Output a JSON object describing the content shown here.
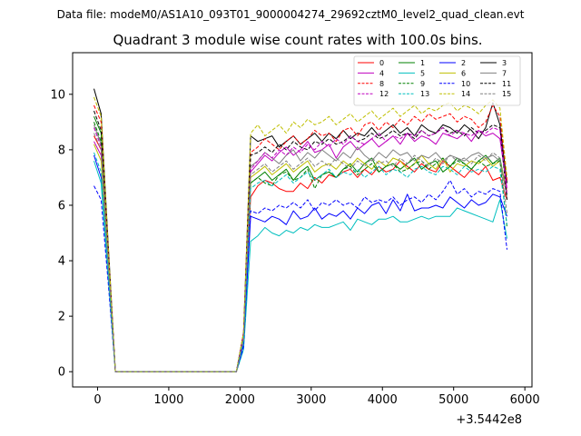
{
  "chart_data": {
    "type": "line",
    "suptitle": "Data file: modeM0/AS1A10_093T01_9000004274_29692cztM0_level2_quad_clean.evt",
    "title": "Quadrant 3 module wise count rates with 100.0s bins.",
    "xlabel": "",
    "ylabel": "",
    "x_offset_label": "+3.5442e8",
    "xlim": [
      -350,
      6100
    ],
    "ylim": [
      -0.55,
      11.5
    ],
    "xticks": [
      0,
      1000,
      2000,
      3000,
      4000,
      5000,
      6000
    ],
    "xtick_labels": [
      "0",
      "1000",
      "2000",
      "3000",
      "4000",
      "5000",
      "6000"
    ],
    "yticks": [
      0,
      2,
      4,
      6,
      8,
      10
    ],
    "ytick_labels": [
      "0",
      "2",
      "4",
      "6",
      "8",
      "10"
    ],
    "grid": false,
    "legend_position": "top-right",
    "x": [
      -50,
      50,
      150,
      250,
      350,
      450,
      550,
      650,
      750,
      850,
      950,
      1050,
      1150,
      1250,
      1350,
      1450,
      1550,
      1650,
      1750,
      1850,
      1950,
      2050,
      2150,
      2250,
      2350,
      2450,
      2550,
      2650,
      2750,
      2850,
      2950,
      3050,
      3150,
      3250,
      3350,
      3450,
      3550,
      3650,
      3750,
      3850,
      3950,
      4050,
      4150,
      4250,
      4350,
      4450,
      4550,
      4650,
      4750,
      4850,
      4950,
      5050,
      5150,
      5250,
      5350,
      5450,
      5550,
      5650,
      5750
    ],
    "series": [
      {
        "name": "0",
        "color": "#ff0000",
        "dash": "solid",
        "values": [
          8.5,
          8.0,
          4.0,
          0,
          0,
          0,
          0,
          0,
          0,
          0,
          0,
          0,
          0,
          0,
          0,
          0,
          0,
          0,
          0,
          0,
          0,
          1.2,
          6.3,
          6.7,
          6.9,
          6.8,
          6.6,
          6.5,
          6.5,
          6.8,
          6.6,
          7.0,
          6.8,
          7.1,
          7.0,
          7.2,
          7.3,
          7.0,
          7.3,
          7.1,
          7.4,
          7.2,
          7.3,
          7.6,
          7.4,
          7.2,
          7.5,
          7.3,
          7.2,
          7.6,
          7.4,
          7.2,
          7.0,
          7.3,
          7.1,
          7.4,
          6.9,
          7.0,
          6.2
        ]
      },
      {
        "name": "1",
        "color": "#008000",
        "dash": "solid",
        "values": [
          9.2,
          8.6,
          4.2,
          0,
          0,
          0,
          0,
          0,
          0,
          0,
          0,
          0,
          0,
          0,
          0,
          0,
          0,
          0,
          0,
          0,
          0,
          1.3,
          6.8,
          7.0,
          7.2,
          6.9,
          7.1,
          7.3,
          6.9,
          7.2,
          7.4,
          6.9,
          7.1,
          7.2,
          7.0,
          7.3,
          7.5,
          7.2,
          7.5,
          7.7,
          7.2,
          7.4,
          7.5,
          7.3,
          7.5,
          7.7,
          7.3,
          7.5,
          7.6,
          7.2,
          7.4,
          7.7,
          7.5,
          7.3,
          7.6,
          7.8,
          7.5,
          7.7,
          6.4
        ]
      },
      {
        "name": "2",
        "color": "#0000ff",
        "dash": "solid",
        "values": [
          7.8,
          7.0,
          3.6,
          0,
          0,
          0,
          0,
          0,
          0,
          0,
          0,
          0,
          0,
          0,
          0,
          0,
          0,
          0,
          0,
          0,
          0,
          1.0,
          5.6,
          5.5,
          5.4,
          5.6,
          5.5,
          5.3,
          5.8,
          5.5,
          5.6,
          5.9,
          5.5,
          5.7,
          5.6,
          5.8,
          5.5,
          5.9,
          5.7,
          6.0,
          6.1,
          5.7,
          6.2,
          5.8,
          6.4,
          5.8,
          5.9,
          5.9,
          6.0,
          5.9,
          6.3,
          6.1,
          5.9,
          6.2,
          6.0,
          6.1,
          6.4,
          6.3,
          5.6
        ]
      },
      {
        "name": "3",
        "color": "#000000",
        "dash": "solid",
        "values": [
          10.2,
          9.3,
          4.6,
          0,
          0,
          0,
          0,
          0,
          0,
          0,
          0,
          0,
          0,
          0,
          0,
          0,
          0,
          0,
          0,
          0,
          0,
          1.4,
          8.5,
          8.3,
          8.4,
          8.5,
          8.1,
          8.3,
          8.5,
          8.2,
          8.4,
          8.6,
          8.3,
          8.6,
          8.4,
          8.7,
          8.4,
          8.6,
          8.5,
          8.8,
          8.5,
          8.7,
          8.9,
          8.6,
          8.8,
          8.5,
          8.9,
          8.7,
          8.6,
          8.9,
          8.8,
          8.6,
          8.9,
          8.7,
          8.4,
          8.8,
          9.7,
          8.9,
          6.8
        ]
      },
      {
        "name": "4",
        "color": "#bf00bf",
        "dash": "solid",
        "values": [
          8.3,
          7.8,
          3.9,
          0,
          0,
          0,
          0,
          0,
          0,
          0,
          0,
          0,
          0,
          0,
          0,
          0,
          0,
          0,
          0,
          0,
          0,
          1.2,
          7.2,
          7.5,
          7.8,
          7.6,
          7.9,
          8.1,
          7.8,
          8.0,
          8.3,
          7.9,
          8.0,
          8.2,
          7.7,
          8.1,
          8.3,
          8.0,
          8.2,
          8.4,
          8.1,
          8.3,
          8.5,
          8.2,
          8.6,
          8.3,
          8.5,
          8.4,
          8.2,
          8.6,
          8.5,
          8.4,
          8.6,
          8.3,
          8.7,
          8.5,
          8.6,
          8.4,
          6.6
        ]
      },
      {
        "name": "5",
        "color": "#00bfbf",
        "dash": "solid",
        "values": [
          7.6,
          6.8,
          3.4,
          0,
          0,
          0,
          0,
          0,
          0,
          0,
          0,
          0,
          0,
          0,
          0,
          0,
          0,
          0,
          0,
          0,
          0,
          0.8,
          4.7,
          4.9,
          5.2,
          5.0,
          4.9,
          5.1,
          5.0,
          5.2,
          5.1,
          5.3,
          5.2,
          5.2,
          5.3,
          5.4,
          5.1,
          5.5,
          5.4,
          5.3,
          5.5,
          5.5,
          5.6,
          5.4,
          5.4,
          5.5,
          5.6,
          5.5,
          5.6,
          5.6,
          5.6,
          5.9,
          5.8,
          5.7,
          5.6,
          5.5,
          5.4,
          6.2,
          4.8
        ]
      },
      {
        "name": "6",
        "color": "#bfbf00",
        "dash": "solid",
        "values": [
          8.2,
          7.6,
          3.8,
          0,
          0,
          0,
          0,
          0,
          0,
          0,
          0,
          0,
          0,
          0,
          0,
          0,
          0,
          0,
          0,
          0,
          0,
          1.2,
          7.0,
          7.2,
          7.4,
          7.1,
          7.3,
          7.5,
          7.2,
          7.4,
          7.6,
          7.2,
          7.4,
          7.5,
          7.3,
          7.6,
          7.4,
          7.7,
          7.5,
          7.3,
          7.6,
          7.4,
          7.7,
          7.6,
          7.3,
          7.5,
          7.8,
          7.5,
          7.3,
          7.7,
          7.2,
          7.5,
          7.4,
          7.6,
          7.5,
          7.7,
          7.4,
          7.6,
          6.5
        ]
      },
      {
        "name": "7",
        "color": "#808080",
        "dash": "solid",
        "values": [
          8.9,
          8.2,
          4.1,
          0,
          0,
          0,
          0,
          0,
          0,
          0,
          0,
          0,
          0,
          0,
          0,
          0,
          0,
          0,
          0,
          0,
          0,
          1.3,
          7.4,
          7.6,
          7.9,
          7.7,
          7.5,
          7.8,
          8.0,
          7.6,
          7.9,
          7.7,
          8.0,
          7.8,
          7.6,
          7.9,
          7.7,
          8.1,
          7.8,
          7.6,
          7.9,
          7.7,
          8.0,
          7.8,
          7.9,
          7.6,
          7.8,
          7.7,
          7.9,
          7.6,
          7.8,
          7.7,
          7.6,
          7.8,
          7.9,
          7.7,
          7.8,
          7.6,
          6.3
        ]
      },
      {
        "name": "8",
        "color": "#ff0000",
        "dash": "dashed",
        "values": [
          9.6,
          9.0,
          4.4,
          0,
          0,
          0,
          0,
          0,
          0,
          0,
          0,
          0,
          0,
          0,
          0,
          0,
          0,
          0,
          0,
          0,
          0,
          1.4,
          7.9,
          8.1,
          8.4,
          8.2,
          8.0,
          8.3,
          8.5,
          8.2,
          8.4,
          8.7,
          8.5,
          8.6,
          8.3,
          8.7,
          8.8,
          8.5,
          8.9,
          9.0,
          8.7,
          9.0,
          8.8,
          9.1,
          8.9,
          9.2,
          9.0,
          9.3,
          9.1,
          9.2,
          9.3,
          9.0,
          9.2,
          9.1,
          8.8,
          9.0,
          9.6,
          9.2,
          6.9
        ]
      },
      {
        "name": "9",
        "color": "#008000",
        "dash": "dashed",
        "values": [
          9.0,
          8.3,
          4.1,
          0,
          0,
          0,
          0,
          0,
          0,
          0,
          0,
          0,
          0,
          0,
          0,
          0,
          0,
          0,
          0,
          0,
          0,
          1.3,
          6.8,
          7.0,
          6.8,
          6.7,
          7.1,
          7.2,
          6.9,
          7.0,
          7.3,
          6.6,
          7.1,
          7.2,
          7.0,
          7.3,
          7.4,
          7.1,
          7.3,
          7.5,
          7.2,
          7.4,
          7.5,
          7.2,
          7.3,
          7.5,
          7.6,
          7.3,
          7.5,
          7.7,
          7.4,
          7.6,
          7.5,
          7.3,
          7.6,
          7.4,
          7.5,
          7.6,
          5.2
        ]
      },
      {
        "name": "10",
        "color": "#0000ff",
        "dash": "dashed",
        "values": [
          6.7,
          6.2,
          3.2,
          0,
          0,
          0,
          0,
          0,
          0,
          0,
          0,
          0,
          0,
          0,
          0,
          0,
          0,
          0,
          0,
          0,
          0,
          0.9,
          5.8,
          5.7,
          5.9,
          5.8,
          6.0,
          5.9,
          6.1,
          5.9,
          6.2,
          5.8,
          6.1,
          6.0,
          6.2,
          6.0,
          6.1,
          5.9,
          6.3,
          6.1,
          6.2,
          6.1,
          6.3,
          6.0,
          6.2,
          6.3,
          6.1,
          6.4,
          6.2,
          6.5,
          6.9,
          6.4,
          6.6,
          6.3,
          6.5,
          6.4,
          6.6,
          6.5,
          4.4
        ]
      },
      {
        "name": "11",
        "color": "#000000",
        "dash": "dashed",
        "values": [
          9.4,
          8.7,
          4.3,
          0,
          0,
          0,
          0,
          0,
          0,
          0,
          0,
          0,
          0,
          0,
          0,
          0,
          0,
          0,
          0,
          0,
          0,
          1.3,
          7.8,
          7.9,
          8.1,
          7.9,
          8.2,
          8.0,
          8.3,
          8.1,
          8.0,
          8.3,
          8.2,
          8.4,
          8.2,
          8.3,
          8.5,
          8.3,
          8.4,
          8.6,
          8.4,
          8.5,
          8.7,
          8.5,
          8.6,
          8.4,
          8.7,
          8.5,
          8.6,
          8.8,
          8.6,
          8.7,
          8.5,
          8.8,
          8.6,
          8.7,
          8.9,
          8.8,
          6.2
        ]
      },
      {
        "name": "12",
        "color": "#bf00bf",
        "dash": "dashed",
        "values": [
          8.8,
          8.1,
          4.0,
          0,
          0,
          0,
          0,
          0,
          0,
          0,
          0,
          0,
          0,
          0,
          0,
          0,
          0,
          0,
          0,
          0,
          0,
          1.3,
          7.3,
          7.6,
          7.9,
          7.7,
          8.0,
          7.8,
          8.1,
          7.9,
          8.2,
          8.0,
          8.3,
          8.1,
          8.4,
          8.2,
          8.5,
          8.3,
          8.2,
          8.4,
          8.6,
          8.3,
          8.5,
          8.4,
          8.6,
          8.5,
          8.7,
          8.5,
          8.6,
          8.8,
          8.5,
          8.7,
          8.6,
          8.5,
          8.7,
          8.6,
          8.8,
          8.7,
          6.4
        ]
      },
      {
        "name": "13",
        "color": "#00bfbf",
        "dash": "dashed",
        "values": [
          7.9,
          7.2,
          3.6,
          0,
          0,
          0,
          0,
          0,
          0,
          0,
          0,
          0,
          0,
          0,
          0,
          0,
          0,
          0,
          0,
          0,
          0,
          1.1,
          6.6,
          6.8,
          6.9,
          6.7,
          6.9,
          7.1,
          6.8,
          7.0,
          7.2,
          6.9,
          7.1,
          7.3,
          7.0,
          7.2,
          7.1,
          7.3,
          7.0,
          7.2,
          7.4,
          7.1,
          7.3,
          7.2,
          7.0,
          7.3,
          7.4,
          7.2,
          7.1,
          7.4,
          7.3,
          7.1,
          7.4,
          7.2,
          7.3,
          7.2,
          7.4,
          7.3,
          5.3
        ]
      },
      {
        "name": "14",
        "color": "#bfbf00",
        "dash": "dashed",
        "values": [
          9.9,
          9.2,
          4.5,
          0,
          0,
          0,
          0,
          0,
          0,
          0,
          0,
          0,
          0,
          0,
          0,
          0,
          0,
          0,
          0,
          0,
          0,
          1.4,
          8.6,
          8.9,
          8.5,
          8.7,
          8.9,
          8.6,
          9.0,
          8.8,
          9.1,
          8.9,
          9.0,
          9.2,
          8.9,
          9.1,
          9.3,
          9.0,
          9.2,
          9.4,
          9.1,
          9.3,
          9.5,
          9.2,
          9.4,
          9.6,
          9.3,
          9.5,
          9.4,
          9.6,
          9.7,
          9.4,
          9.6,
          9.5,
          9.3,
          9.6,
          9.8,
          9.5,
          7.0
        ]
      },
      {
        "name": "15",
        "color": "#808080",
        "dash": "dashed",
        "values": [
          8.6,
          8.0,
          3.9,
          0,
          0,
          0,
          0,
          0,
          0,
          0,
          0,
          0,
          0,
          0,
          0,
          0,
          0,
          0,
          0,
          0,
          0,
          1.2,
          7.1,
          7.3,
          7.5,
          7.2,
          7.4,
          7.6,
          7.3,
          7.5,
          7.7,
          7.4,
          7.6,
          7.4,
          7.7,
          7.5,
          7.3,
          7.6,
          7.4,
          7.7,
          7.5,
          7.6,
          7.4,
          7.7,
          7.5,
          7.8,
          7.6,
          7.4,
          7.7,
          7.5,
          7.8,
          7.6,
          7.7,
          7.5,
          7.8,
          7.6,
          7.9,
          7.7,
          5.7
        ]
      }
    ]
  }
}
